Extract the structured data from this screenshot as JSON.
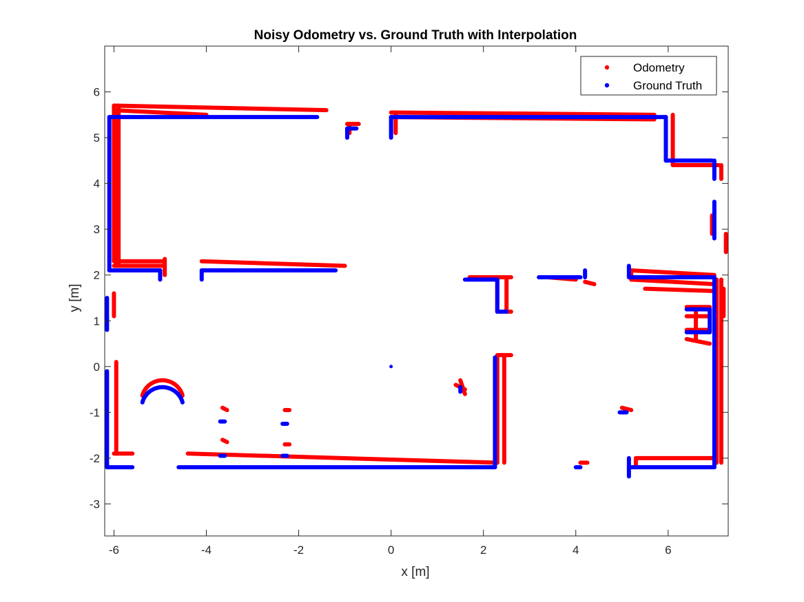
{
  "chart_data": {
    "type": "scatter",
    "title": "Noisy Odometry vs. Ground Truth with Interpolation",
    "xlabel": "x [m]",
    "ylabel": "y [m]",
    "xlim": [
      -6.2,
      7.3
    ],
    "ylim": [
      -3.7,
      7.0
    ],
    "xticks": [
      -6,
      -4,
      -2,
      0,
      2,
      4,
      6
    ],
    "yticks": [
      -3,
      -2,
      -1,
      0,
      1,
      2,
      3,
      4,
      5,
      6
    ],
    "grid": false,
    "legend_position": "top-right",
    "series": [
      {
        "name": "Odometry",
        "color": "#ff0000",
        "marker": "dot",
        "segments": [
          [
            [
              -6.0,
              5.7
            ],
            [
              -1.4,
              5.6
            ]
          ],
          [
            [
              -6.0,
              5.6
            ],
            [
              -4.0,
              5.5
            ]
          ],
          [
            [
              -6.0,
              5.7
            ],
            [
              -6.0,
              2.3
            ]
          ],
          [
            [
              -5.95,
              5.6
            ],
            [
              -5.95,
              2.2
            ]
          ],
          [
            [
              -5.9,
              5.7
            ],
            [
              -5.9,
              2.2
            ]
          ],
          [
            [
              -6.0,
              2.3
            ],
            [
              -4.9,
              2.3
            ]
          ],
          [
            [
              -6.0,
              2.2
            ],
            [
              -4.9,
              2.2
            ]
          ],
          [
            [
              -4.9,
              2.35
            ],
            [
              -4.9,
              2.0
            ]
          ],
          [
            [
              -4.1,
              2.3
            ],
            [
              -1.0,
              2.2
            ]
          ],
          [
            [
              -0.95,
              5.3
            ],
            [
              -0.7,
              5.3
            ]
          ],
          [
            [
              -0.9,
              5.3
            ],
            [
              -0.9,
              5.1
            ]
          ],
          [
            [
              0.0,
              5.55
            ],
            [
              5.7,
              5.5
            ]
          ],
          [
            [
              0.0,
              5.45
            ],
            [
              5.7,
              5.4
            ]
          ],
          [
            [
              0.1,
              5.5
            ],
            [
              0.1,
              5.1
            ]
          ],
          [
            [
              6.1,
              5.5
            ],
            [
              6.1,
              4.4
            ]
          ],
          [
            [
              6.1,
              4.4
            ],
            [
              7.1,
              4.4
            ]
          ],
          [
            [
              7.15,
              4.4
            ],
            [
              7.15,
              4.1
            ]
          ],
          [
            [
              6.95,
              3.3
            ],
            [
              6.95,
              2.9
            ]
          ],
          [
            [
              7.25,
              2.9
            ],
            [
              7.25,
              2.5
            ]
          ],
          [
            [
              1.7,
              1.95
            ],
            [
              2.6,
              1.95
            ]
          ],
          [
            [
              2.3,
              1.95
            ],
            [
              2.3,
              1.2
            ]
          ],
          [
            [
              2.5,
              1.9
            ],
            [
              2.5,
              1.2
            ]
          ],
          [
            [
              2.3,
              1.2
            ],
            [
              2.6,
              1.2
            ]
          ],
          [
            [
              3.4,
              1.95
            ],
            [
              4.0,
              1.9
            ]
          ],
          [
            [
              4.2,
              1.85
            ],
            [
              4.4,
              1.8
            ]
          ],
          [
            [
              5.2,
              2.1
            ],
            [
              7.0,
              2.0
            ]
          ],
          [
            [
              5.2,
              1.9
            ],
            [
              7.0,
              1.8
            ]
          ],
          [
            [
              5.5,
              1.7
            ],
            [
              7.0,
              1.65
            ]
          ],
          [
            [
              5.2,
              2.1
            ],
            [
              5.2,
              1.9
            ]
          ],
          [
            [
              7.05,
              1.9
            ],
            [
              7.05,
              -2.1
            ]
          ],
          [
            [
              7.15,
              1.9
            ],
            [
              7.15,
              -2.1
            ]
          ],
          [
            [
              7.2,
              1.7
            ],
            [
              7.2,
              1.1
            ]
          ],
          [
            [
              6.4,
              1.3
            ],
            [
              6.9,
              1.3
            ]
          ],
          [
            [
              6.4,
              1.1
            ],
            [
              6.9,
              1.1
            ]
          ],
          [
            [
              6.4,
              0.8
            ],
            [
              6.9,
              0.8
            ]
          ],
          [
            [
              6.4,
              0.6
            ],
            [
              6.9,
              0.5
            ]
          ],
          [
            [
              6.6,
              1.3
            ],
            [
              6.6,
              0.6
            ]
          ],
          [
            [
              5.3,
              -2.0
            ],
            [
              7.0,
              -2.0
            ]
          ],
          [
            [
              5.3,
              -2.05
            ],
            [
              5.3,
              -2.2
            ]
          ],
          [
            [
              -6.0,
              1.6
            ],
            [
              -6.0,
              1.1
            ]
          ],
          [
            [
              -5.95,
              0.1
            ],
            [
              -5.95,
              -1.9
            ]
          ],
          [
            [
              -6.0,
              -1.9
            ],
            [
              -5.6,
              -1.9
            ]
          ],
          [
            [
              -4.4,
              -1.9
            ],
            [
              2.3,
              -2.1
            ]
          ],
          [
            [
              2.3,
              0.2
            ],
            [
              2.3,
              -2.1
            ]
          ],
          [
            [
              2.45,
              0.2
            ],
            [
              2.45,
              -2.1
            ]
          ],
          [
            [
              2.3,
              0.25
            ],
            [
              2.6,
              0.25
            ]
          ],
          [
            [
              1.4,
              -0.4
            ],
            [
              1.6,
              -0.5
            ]
          ],
          [
            [
              1.5,
              -0.3
            ],
            [
              1.6,
              -0.6
            ]
          ],
          [
            [
              4.1,
              -2.1
            ],
            [
              4.25,
              -2.1
            ]
          ],
          [
            [
              5.0,
              -0.9
            ],
            [
              5.2,
              -0.95
            ]
          ],
          [
            [
              -3.65,
              -0.9
            ],
            [
              -3.55,
              -0.95
            ]
          ],
          [
            [
              -2.3,
              -0.95
            ],
            [
              -2.2,
              -0.95
            ]
          ],
          [
            [
              -3.65,
              -1.6
            ],
            [
              -3.55,
              -1.65
            ]
          ],
          [
            [
              -2.3,
              -1.7
            ],
            [
              -2.2,
              -1.7
            ]
          ]
        ],
        "arc": {
          "center": [
            -4.95,
            -0.75
          ],
          "radius": 0.45,
          "start_deg": 195,
          "end_deg": 345
        }
      },
      {
        "name": "Ground Truth",
        "color": "#0000ff",
        "marker": "dot",
        "segments": [
          [
            [
              -6.1,
              5.45
            ],
            [
              -1.6,
              5.45
            ]
          ],
          [
            [
              -6.1,
              5.45
            ],
            [
              -6.1,
              2.1
            ]
          ],
          [
            [
              -6.1,
              2.1
            ],
            [
              -5.0,
              2.1
            ]
          ],
          [
            [
              -5.0,
              2.1
            ],
            [
              -5.0,
              1.9
            ]
          ],
          [
            [
              -4.1,
              2.1
            ],
            [
              -1.2,
              2.1
            ]
          ],
          [
            [
              -4.1,
              2.1
            ],
            [
              -4.1,
              1.9
            ]
          ],
          [
            [
              -0.95,
              5.2
            ],
            [
              -0.95,
              5.0
            ]
          ],
          [
            [
              -0.95,
              5.2
            ],
            [
              -0.75,
              5.2
            ]
          ],
          [
            [
              0.0,
              5.45
            ],
            [
              5.95,
              5.45
            ]
          ],
          [
            [
              0.0,
              5.45
            ],
            [
              0.0,
              5.0
            ]
          ],
          [
            [
              5.95,
              5.45
            ],
            [
              5.95,
              4.5
            ]
          ],
          [
            [
              5.95,
              4.5
            ],
            [
              6.95,
              4.5
            ]
          ],
          [
            [
              7.0,
              4.5
            ],
            [
              7.0,
              4.1
            ]
          ],
          [
            [
              7.0,
              3.6
            ],
            [
              7.0,
              2.8
            ]
          ],
          [
            [
              1.6,
              1.9
            ],
            [
              2.3,
              1.9
            ]
          ],
          [
            [
              2.3,
              1.9
            ],
            [
              2.3,
              1.2
            ]
          ],
          [
            [
              2.3,
              1.2
            ],
            [
              2.5,
              1.2
            ]
          ],
          [
            [
              3.2,
              1.95
            ],
            [
              4.1,
              1.95
            ]
          ],
          [
            [
              4.2,
              2.1
            ],
            [
              4.2,
              1.95
            ]
          ],
          [
            [
              5.15,
              2.2
            ],
            [
              5.15,
              1.95
            ]
          ],
          [
            [
              5.15,
              1.95
            ],
            [
              7.0,
              1.95
            ]
          ],
          [
            [
              7.0,
              1.95
            ],
            [
              7.0,
              -2.2
            ]
          ],
          [
            [
              6.4,
              1.25
            ],
            [
              6.9,
              1.25
            ]
          ],
          [
            [
              6.4,
              0.75
            ],
            [
              6.9,
              0.75
            ]
          ],
          [
            [
              6.9,
              1.25
            ],
            [
              6.9,
              0.75
            ]
          ],
          [
            [
              5.2,
              -2.2
            ],
            [
              7.0,
              -2.2
            ]
          ],
          [
            [
              5.15,
              -2.0
            ],
            [
              5.15,
              -2.4
            ]
          ],
          [
            [
              -6.15,
              1.5
            ],
            [
              -6.15,
              0.8
            ]
          ],
          [
            [
              -6.15,
              -0.1
            ],
            [
              -6.15,
              -2.2
            ]
          ],
          [
            [
              -6.15,
              -2.2
            ],
            [
              -5.6,
              -2.2
            ]
          ],
          [
            [
              -4.6,
              -2.2
            ],
            [
              2.25,
              -2.2
            ]
          ],
          [
            [
              2.25,
              0.2
            ],
            [
              2.25,
              -2.2
            ]
          ],
          [
            [
              1.5,
              -0.45
            ],
            [
              1.5,
              -0.55
            ]
          ],
          [
            [
              4.0,
              -2.2
            ],
            [
              4.1,
              -2.2
            ]
          ],
          [
            [
              4.95,
              -1.0
            ],
            [
              5.1,
              -1.0
            ]
          ],
          [
            [
              -3.7,
              -1.2
            ],
            [
              -3.6,
              -1.2
            ]
          ],
          [
            [
              -2.35,
              -1.25
            ],
            [
              -2.25,
              -1.25
            ]
          ],
          [
            [
              -3.7,
              -1.95
            ],
            [
              -3.6,
              -1.95
            ]
          ],
          [
            [
              -2.35,
              -1.95
            ],
            [
              -2.25,
              -1.95
            ]
          ]
        ],
        "points": [
          [
            0.0,
            0.0
          ]
        ],
        "arc": {
          "center": [
            -4.95,
            -0.9
          ],
          "radius": 0.45,
          "start_deg": 195,
          "end_deg": 345
        }
      }
    ]
  }
}
